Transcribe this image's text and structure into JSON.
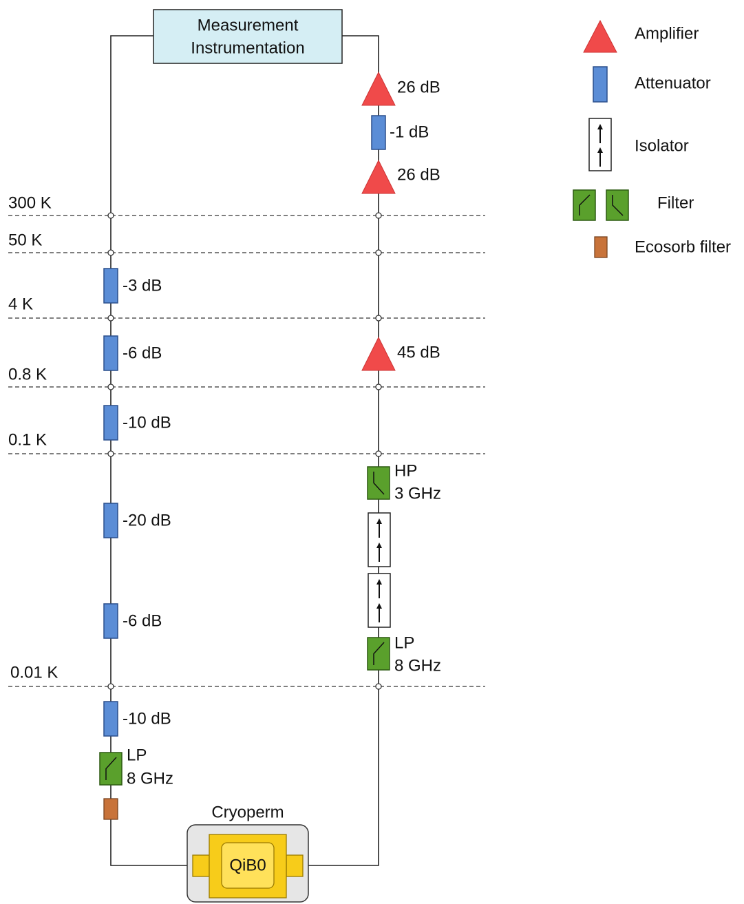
{
  "instrument": {
    "lines": [
      "Measurement",
      "Instrumentation"
    ]
  },
  "stages": [
    "300 K",
    "50 K",
    "4 K",
    "0.8 K",
    "0.1 K",
    "0.01 K"
  ],
  "drive_line": {
    "attenuators": [
      "-3 dB",
      "-6 dB",
      "-10 dB",
      "-20 dB",
      "-6 dB",
      "-10 dB"
    ],
    "filter": [
      "LP",
      "8 GHz"
    ]
  },
  "readout_line": {
    "amplifiers": [
      "26 dB",
      "26 dB",
      "45 dB"
    ],
    "attenuator": "-1 dB",
    "hp_filter": [
      "HP",
      "3 GHz"
    ],
    "lp_filter": [
      "LP",
      "8 GHz"
    ]
  },
  "sample": {
    "shield": "Cryoperm",
    "chip": "QiB0"
  },
  "legend": [
    "Amplifier",
    "Attenuator",
    "Isolator",
    "Filter",
    "Ecosorb filter"
  ]
}
